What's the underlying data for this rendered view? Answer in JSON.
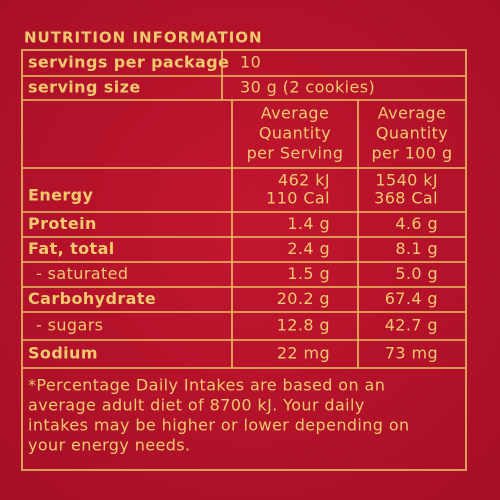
{
  "title": "NUTRITION INFORMATION",
  "serving_info": [
    {
      "label": "servings per package",
      "value": "10"
    },
    {
      "label": "serving size",
      "value": "30 g (2 cookies)"
    }
  ],
  "table": {
    "headers": [
      [
        "Average",
        "Quantity",
        "per Serving"
      ],
      [
        "Average",
        "Quantity",
        "per 100 g"
      ]
    ],
    "rows": [
      {
        "label": "Energy",
        "per_serving": [
          "462 kJ",
          "110 Cal"
        ],
        "per_100g": [
          "1540 kJ",
          "368 Cal"
        ]
      },
      {
        "label": "Protein",
        "per_serving": [
          "1.4 g"
        ],
        "per_100g": [
          "4.6 g"
        ]
      },
      {
        "label": "Fat, total",
        "per_serving": [
          "2.4 g"
        ],
        "per_100g": [
          "8.1 g"
        ]
      },
      {
        "label": "- saturated",
        "per_serving": [
          "1.5 g"
        ],
        "per_100g": [
          "5.0 g"
        ]
      },
      {
        "label": "Carbohydrate",
        "per_serving": [
          "20.2 g"
        ],
        "per_100g": [
          "67.4 g"
        ]
      },
      {
        "label": "- sugars",
        "per_serving": [
          "12.8 g"
        ],
        "per_100g": [
          "42.7 g"
        ]
      },
      {
        "label": "Sodium",
        "per_serving": [
          "22 mg"
        ],
        "per_100g": [
          "73 mg"
        ]
      }
    ]
  },
  "footnote": [
    "*Percentage Daily Intakes are based on an",
    "average adult diet of 8700 kJ. Your daily",
    "intakes may be higher or lower depending on",
    "your energy needs."
  ]
}
